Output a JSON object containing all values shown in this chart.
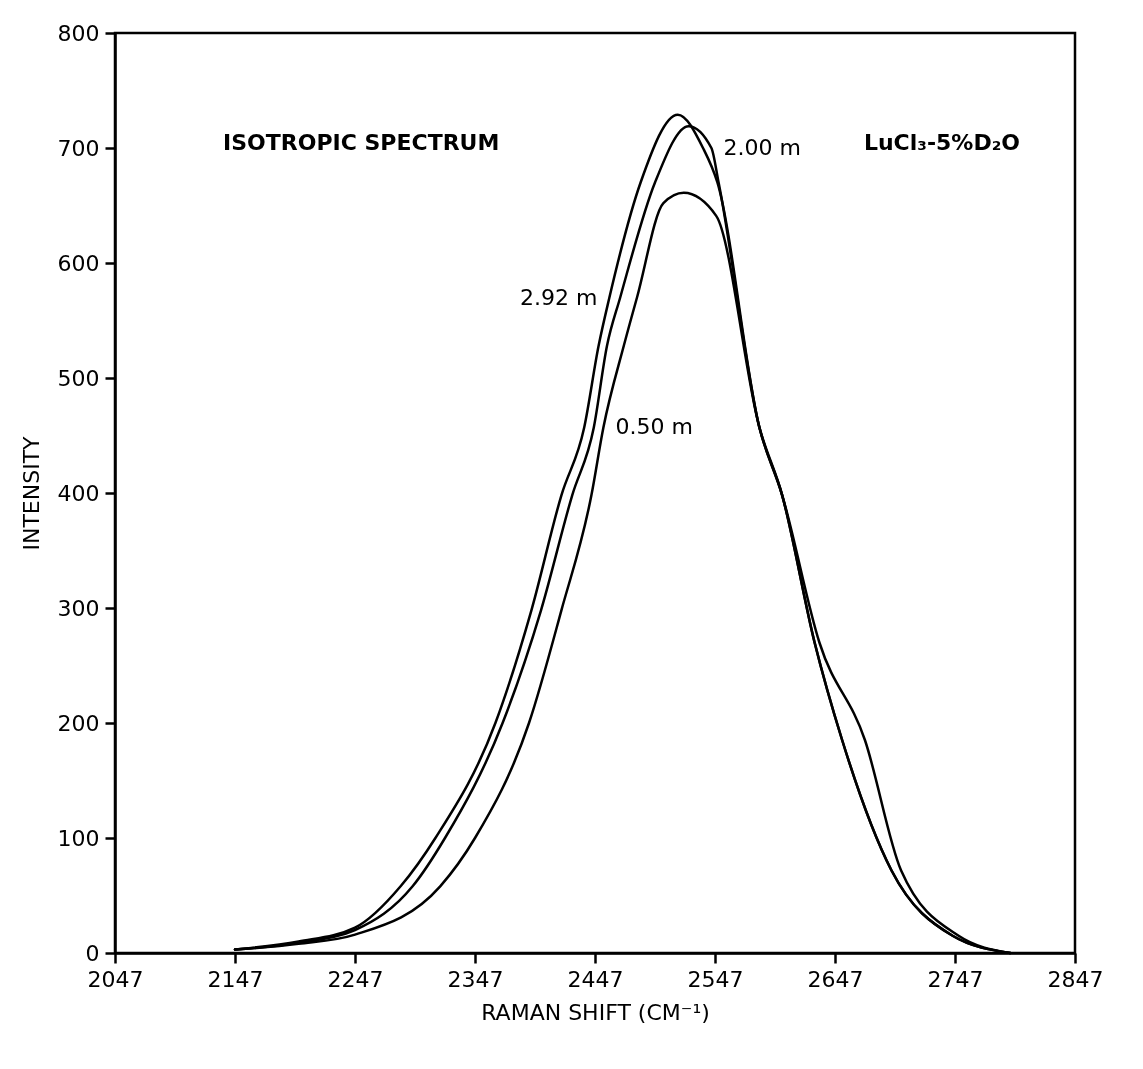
{
  "chart_data": {
    "type": "line",
    "xlabel": "RAMAN SHIFT (CM⁻¹)",
    "ylabel": "INTENSITY",
    "annotations": [
      "ISOTROPIC SPECTRUM",
      "LuCl₃-5%D₂O"
    ],
    "xlim": [
      2047,
      2847
    ],
    "xticks": [
      2047,
      2147,
      2247,
      2347,
      2447,
      2547,
      2647,
      2747,
      2847
    ],
    "ylim": [
      0,
      800
    ],
    "yticks": [
      0,
      100,
      200,
      300,
      400,
      500,
      600,
      700,
      800
    ],
    "grid": false,
    "legend": false,
    "marker": "none",
    "line_style": "solid",
    "series": [
      {
        "name": "2.92 m",
        "color": "#000000",
        "x": [
          2147,
          2200,
          2247,
          2285,
          2314,
          2364,
          2394,
          2419,
          2438,
          2450,
          2459,
          2485,
          2516,
          2537,
          2549,
          2584,
          2603,
          2634,
          2672,
          2702,
          2750,
          2793
        ],
        "values": [
          3,
          10,
          22,
          58,
          100,
          200,
          298,
          398,
          457,
          528,
          570,
          670,
          729,
          700,
          670,
          457,
          398,
          270,
          185,
          72,
          15,
          0
        ]
      },
      {
        "name": "2.00 m",
        "color": "#000000",
        "x": [
          2147,
          2200,
          2247,
          2295,
          2322,
          2370,
          2402,
          2428,
          2446,
          2457,
          2468,
          2497,
          2525,
          2544,
          2550,
          2584,
          2603,
          2630,
          2653,
          2694,
          2745,
          2793
        ],
        "values": [
          3,
          9,
          20,
          58,
          100,
          200,
          298,
          398,
          457,
          528,
          570,
          670,
          719,
          700,
          670,
          457,
          398,
          270,
          185,
          72,
          15,
          0
        ]
      },
      {
        "name": "0.50 m",
        "color": "#000000",
        "x": [
          2147,
          2200,
          2247,
          2318,
          2347,
          2392,
          2419,
          2444,
          2454,
          2471,
          2482,
          2504,
          2521,
          2548,
          2584,
          2603,
          2630,
          2653,
          2694,
          2745,
          2793
        ],
        "values": [
          3,
          8,
          16,
          58,
          100,
          200,
          298,
          398,
          457,
          528,
          570,
          652,
          661,
          641,
          457,
          398,
          270,
          185,
          72,
          15,
          0
        ]
      }
    ]
  }
}
